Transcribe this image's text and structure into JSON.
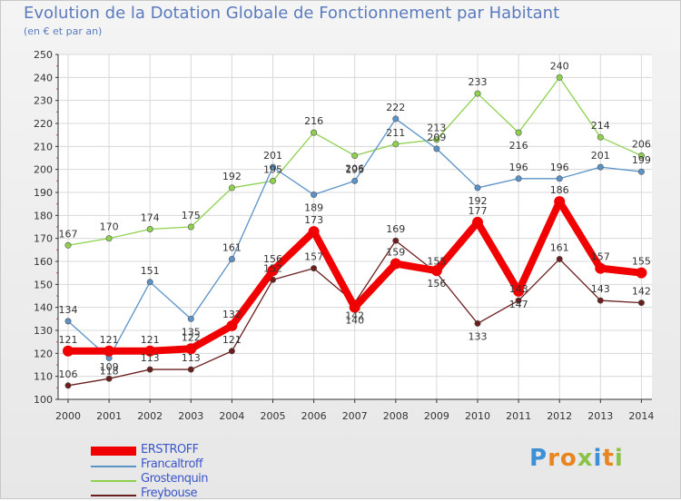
{
  "header": {
    "title": "Evolution de la Dotation Globale de Fonctionnement par Habitant",
    "subtitle": "(en € et par an)"
  },
  "logo": {
    "text": "Proxiti"
  },
  "chart_data": {
    "type": "line",
    "title": "Evolution de la Dotation Globale de Fonctionnement par Habitant",
    "subtitle": "(en € et par an)",
    "xlabel": "",
    "ylabel": "",
    "x": [
      "2000",
      "2001",
      "2002",
      "2003",
      "2004",
      "2005",
      "2006",
      "2007",
      "2008",
      "2009",
      "2010",
      "2011",
      "2012",
      "2013",
      "2014"
    ],
    "ylim": [
      100,
      250
    ],
    "yticks": [
      100,
      110,
      120,
      130,
      140,
      150,
      160,
      170,
      180,
      190,
      200,
      210,
      220,
      230,
      240,
      250
    ],
    "grid": true,
    "legend_position": "bottom-left",
    "series": [
      {
        "name": "Grostenquin",
        "color": "#8ed14e",
        "values": [
          167,
          170,
          174,
          175,
          192,
          195,
          216,
          206,
          211,
          213,
          233,
          216,
          240,
          214,
          206
        ]
      },
      {
        "name": "Francaltroff",
        "color": "#5b92c8",
        "values": [
          134,
          118,
          151,
          135,
          161,
          201,
          189,
          195,
          222,
          209,
          192,
          196,
          196,
          201,
          199
        ]
      },
      {
        "name": "Freybouse",
        "color": "#6b1e1e",
        "values": [
          106,
          109,
          113,
          113,
          121,
          152,
          157,
          142,
          169,
          155,
          133,
          143,
          161,
          143,
          142
        ]
      },
      {
        "name": "ERSTROFF",
        "color": "#f00000",
        "values": [
          121,
          121,
          121,
          122,
          132,
          156,
          173,
          140,
          159,
          156,
          177,
          147,
          186,
          157,
          155
        ]
      }
    ],
    "legend": [
      "ERSTROFF",
      "Francaltroff",
      "Grostenquin",
      "Freybouse"
    ]
  }
}
